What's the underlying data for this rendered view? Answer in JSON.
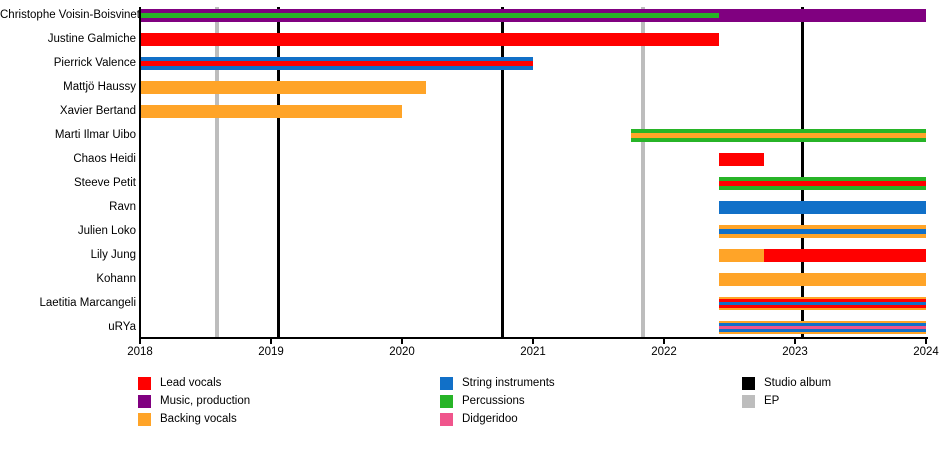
{
  "chart_data": {
    "type": "timeline",
    "title": "",
    "x_axis": {
      "min": 2018,
      "max": 2024,
      "tick_labels": [
        "2018",
        "2019",
        "2020",
        "2021",
        "2022",
        "2023",
        "2024"
      ],
      "grid": false
    },
    "colors": {
      "red": "#FF0000",
      "purple": "#800080",
      "orange": "#FFA428",
      "blue": "#1170C8",
      "green": "#27B427",
      "pink": "#F0558C",
      "black": "#000000",
      "gray": "#BDBDBD"
    },
    "roles": {
      "Lead vocals": "red",
      "Music, production": "purple",
      "Backing vocals": "orange",
      "String instruments": "blue",
      "Percussions": "green",
      "Didgeridoo": "pink"
    },
    "event_types": {
      "Studio album": "black",
      "EP": "gray"
    },
    "members": [
      {
        "name": "Christophe Voisin-Boisvinet",
        "bars": [
          {
            "start": 2018,
            "end": 2022.42,
            "stripes": [
              "Music, production",
              "Percussions"
            ]
          },
          {
            "start": 2022.42,
            "end": 2024,
            "stripes": [
              "Music, production"
            ]
          }
        ]
      },
      {
        "name": "Justine Galmiche",
        "bars": [
          {
            "start": 2018,
            "end": 2022.42,
            "stripes": [
              "Lead vocals"
            ]
          }
        ]
      },
      {
        "name": "Pierrick Valence",
        "bars": [
          {
            "start": 2018,
            "end": 2021.0,
            "stripes": [
              "String instruments",
              "Lead vocals"
            ]
          }
        ]
      },
      {
        "name": "Mattjö Haussy",
        "bars": [
          {
            "start": 2018,
            "end": 2020.18,
            "stripes": [
              "Backing vocals"
            ]
          }
        ]
      },
      {
        "name": "Xavier Bertand",
        "bars": [
          {
            "start": 2018,
            "end": 2020.0,
            "stripes": [
              "Backing vocals"
            ]
          }
        ]
      },
      {
        "name": "Marti Ilmar Uibo",
        "bars": [
          {
            "start": 2021.75,
            "end": 2024,
            "stripes": [
              "Percussions",
              "Backing vocals"
            ]
          }
        ]
      },
      {
        "name": "Chaos Heidi",
        "bars": [
          {
            "start": 2022.42,
            "end": 2022.76,
            "stripes": [
              "Lead vocals"
            ]
          }
        ]
      },
      {
        "name": "Steeve Petit",
        "bars": [
          {
            "start": 2022.42,
            "end": 2024,
            "stripes": [
              "Percussions",
              "Lead vocals"
            ]
          }
        ]
      },
      {
        "name": "Ravn",
        "bars": [
          {
            "start": 2022.42,
            "end": 2024,
            "stripes": [
              "String instruments"
            ]
          }
        ]
      },
      {
        "name": "Julien Loko",
        "bars": [
          {
            "start": 2022.42,
            "end": 2024,
            "stripes": [
              "Backing vocals",
              "String instruments"
            ]
          }
        ]
      },
      {
        "name": "Lily Jung",
        "bars": [
          {
            "start": 2022.42,
            "end": 2022.76,
            "stripes": [
              "Backing vocals"
            ]
          },
          {
            "start": 2022.76,
            "end": 2024,
            "stripes": [
              "Lead vocals"
            ]
          }
        ]
      },
      {
        "name": "Kohann",
        "bars": [
          {
            "start": 2022.42,
            "end": 2024,
            "stripes": [
              "Backing vocals"
            ]
          }
        ]
      },
      {
        "name": "Laetitia Marcangeli",
        "bars": [
          {
            "start": 2022.42,
            "end": 2024,
            "stripes": [
              "Backing vocals",
              "Lead vocals",
              "String instruments"
            ]
          }
        ]
      },
      {
        "name": "uRYa",
        "bars": [
          {
            "start": 2022.42,
            "end": 2024,
            "stripes": [
              "Backing vocals",
              "String instruments",
              "Didgeridoo"
            ]
          }
        ]
      }
    ],
    "events": [
      {
        "year": 2018.59,
        "type": "EP"
      },
      {
        "year": 2019.06,
        "type": "Studio album"
      },
      {
        "year": 2020.77,
        "type": "Studio album"
      },
      {
        "year": 2021.84,
        "type": "EP"
      },
      {
        "year": 2023.06,
        "type": "Studio album"
      }
    ],
    "legend": {
      "columns": [
        {
          "items": [
            {
              "label": "Lead vocals",
              "color": "red"
            },
            {
              "label": "Music, production",
              "color": "purple"
            },
            {
              "label": "Backing vocals",
              "color": "orange"
            }
          ]
        },
        {
          "items": [
            {
              "label": "String instruments",
              "color": "blue"
            },
            {
              "label": "Percussions",
              "color": "green"
            },
            {
              "label": "Didgeridoo",
              "color": "pink"
            }
          ]
        },
        {
          "items": [
            {
              "label": "Studio album",
              "color": "black"
            },
            {
              "label": "EP",
              "color": "gray"
            }
          ]
        }
      ]
    }
  }
}
